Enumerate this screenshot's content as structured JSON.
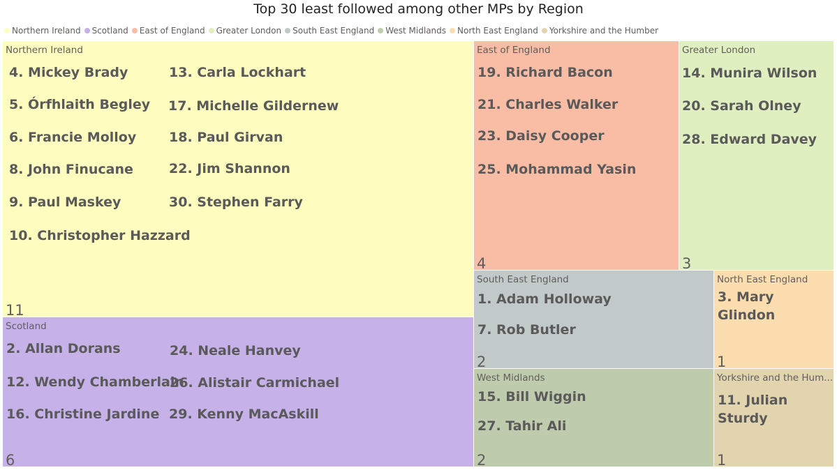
{
  "chart_data": {
    "type": "treemap",
    "title": "Top 30 least followed among other MPs by Region",
    "legend_position": "top-left",
    "series": [
      {
        "name": "Northern Ireland",
        "color": "#fffcbf",
        "count": "11",
        "members": [
          "4. Mickey Brady",
          "5. Órfhlaith Begley",
          "6. Francie Molloy",
          "8. John Finucane",
          "9. Paul Maskey",
          "10. Christopher Hazzard",
          "13. Carla Lockhart",
          "17. Michelle Gildernew",
          "18. Paul Girvan",
          "22. Jim Shannon",
          "30. Stephen Farry"
        ]
      },
      {
        "name": "Scotland",
        "color": "#c6b1e9",
        "count": "6",
        "members": [
          "2. Allan Dorans",
          "12. Wendy Chamberlain",
          "16. Christine Jardine",
          "24. Neale Hanvey",
          "26. Alistair Carmichael",
          "29. Kenny MacAskill"
        ]
      },
      {
        "name": "East of England",
        "color": "#f9bda6",
        "count": "4",
        "members": [
          "19. Richard Bacon",
          "21. Charles Walker",
          "23. Daisy Cooper",
          "25. Mohammad Yasin"
        ]
      },
      {
        "name": "Greater London",
        "color": "#dfefc0",
        "count": "3",
        "members": [
          "14. Munira Wilson",
          "20. Sarah Olney",
          "28. Edward Davey"
        ]
      },
      {
        "name": "South East England",
        "color": "#c1cac8",
        "count": "2",
        "members": [
          "1. Adam Holloway",
          "7. Rob Butler"
        ]
      },
      {
        "name": "West Midlands",
        "color": "#bfcbad",
        "count": "2",
        "members": [
          "15. Bill Wiggin",
          "27. Tahir Ali"
        ]
      },
      {
        "name": "North East England",
        "color": "#fcddb0",
        "count": "1",
        "members": [
          "3. Mary Glindon"
        ]
      },
      {
        "name": "Yorkshire and the Humber",
        "display_label": "Yorkshire and the Hum...",
        "color": "#e1d4af",
        "count": "1",
        "members": [
          "11. Julian Sturdy"
        ]
      }
    ]
  }
}
